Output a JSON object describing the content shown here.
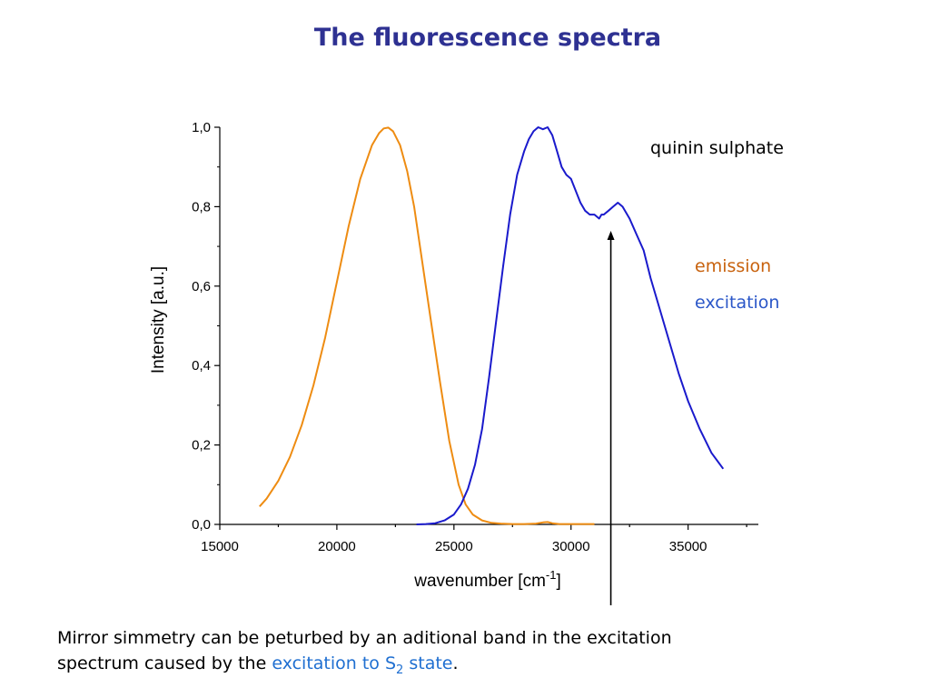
{
  "slide": {
    "title": "The fluorescence spectra",
    "title_color": "#2e3192"
  },
  "chart_data": {
    "type": "line",
    "title": "",
    "xlabel_main": "wavenumber [cm",
    "xlabel_sup": "-1",
    "xlabel_tail": "]",
    "ylabel": "Intensity [a.u.]",
    "xlim": [
      15000,
      38000
    ],
    "ylim": [
      0,
      1.0
    ],
    "x_ticks": [
      15000,
      20000,
      25000,
      30000,
      35000
    ],
    "x_tick_labels": [
      "15000",
      "20000",
      "25000",
      "30000",
      "35000"
    ],
    "y_ticks": [
      0,
      0.2,
      0.4,
      0.6,
      0.8,
      1.0
    ],
    "y_tick_labels": [
      "0,0",
      "0,2",
      "0,4",
      "0,6",
      "0,8",
      "1,0"
    ],
    "grid": false,
    "legend_placement": "right",
    "series": [
      {
        "name": "emission",
        "color": "#ee8c12",
        "x": [
          16700,
          17000,
          17500,
          18000,
          18500,
          19000,
          19500,
          20000,
          20500,
          21000,
          21500,
          21800,
          22000,
          22200,
          22400,
          22700,
          23000,
          23300,
          23600,
          24000,
          24400,
          24800,
          25200,
          25500,
          25800,
          26200,
          26600,
          27000,
          27500,
          28000,
          28500,
          28800,
          29000,
          29200,
          29500,
          30000,
          31000
        ],
        "y": [
          0.045,
          0.065,
          0.11,
          0.17,
          0.25,
          0.35,
          0.47,
          0.61,
          0.75,
          0.87,
          0.955,
          0.985,
          0.997,
          0.999,
          0.99,
          0.955,
          0.89,
          0.8,
          0.68,
          0.52,
          0.36,
          0.21,
          0.1,
          0.05,
          0.025,
          0.01,
          0.004,
          0.002,
          0.001,
          0.001,
          0.002,
          0.005,
          0.006,
          0.003,
          0.001,
          0.001,
          0.001
        ]
      },
      {
        "name": "excitation",
        "color": "#1a1acc",
        "x": [
          23400,
          23800,
          24200,
          24600,
          25000,
          25300,
          25600,
          25900,
          26200,
          26500,
          26800,
          27100,
          27400,
          27700,
          28000,
          28200,
          28400,
          28600,
          28800,
          29000,
          29200,
          29400,
          29600,
          29800,
          30000,
          30200,
          30400,
          30600,
          30800,
          31000,
          31200,
          31300,
          31400,
          31600,
          31800,
          32000,
          32200,
          32500,
          32800,
          33100,
          33400,
          33800,
          34200,
          34600,
          35000,
          35500,
          36000,
          36500
        ],
        "y": [
          0.0,
          0.001,
          0.003,
          0.01,
          0.025,
          0.05,
          0.09,
          0.15,
          0.24,
          0.37,
          0.51,
          0.65,
          0.78,
          0.88,
          0.94,
          0.97,
          0.99,
          1.0,
          0.995,
          1.0,
          0.98,
          0.94,
          0.9,
          0.88,
          0.87,
          0.84,
          0.81,
          0.79,
          0.78,
          0.78,
          0.77,
          0.78,
          0.78,
          0.79,
          0.8,
          0.81,
          0.8,
          0.77,
          0.73,
          0.69,
          0.62,
          0.54,
          0.46,
          0.38,
          0.31,
          0.24,
          0.18,
          0.14
        ]
      }
    ]
  },
  "annotations": {
    "sample_name": "quinin sulphate",
    "legend_emission": "emission",
    "legend_emission_color": "#c8620e",
    "legend_excitation": "excitation",
    "legend_excitation_color": "#2b57c8",
    "arrow_wavenumber": 31700
  },
  "caption": {
    "line1": "Mirror simmetry can be peturbed by an aditional band in the excitation",
    "line2_pre": "spectrum caused by the ",
    "highlight_pre": "excitation to S",
    "highlight_sub": "2",
    "highlight_post": " state",
    "line2_end": ".",
    "highlight_color": "#1f6fd1"
  }
}
